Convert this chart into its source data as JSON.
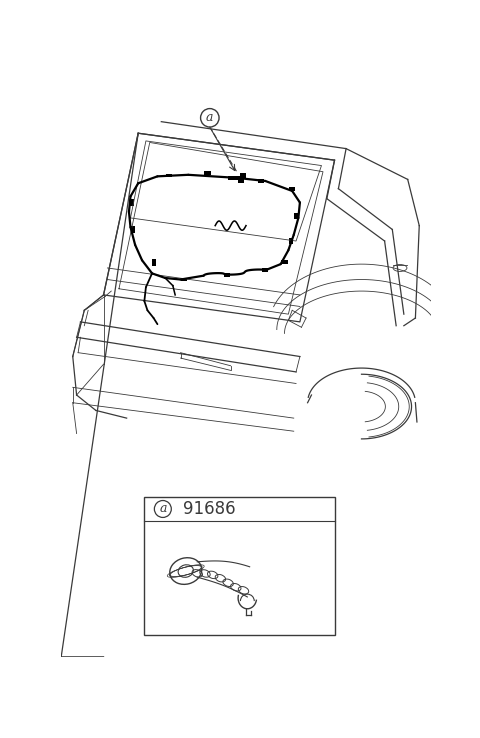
{
  "bg_color": "#ffffff",
  "line_color": "#3a3a3a",
  "black": "#000000",
  "part_number": "91686",
  "label_a_text": "a",
  "fig_width": 4.8,
  "fig_height": 7.38,
  "dpi": 100,
  "lw_thin": 0.6,
  "lw_med": 0.9,
  "lw_thick": 1.3,
  "lw_wire": 1.6
}
